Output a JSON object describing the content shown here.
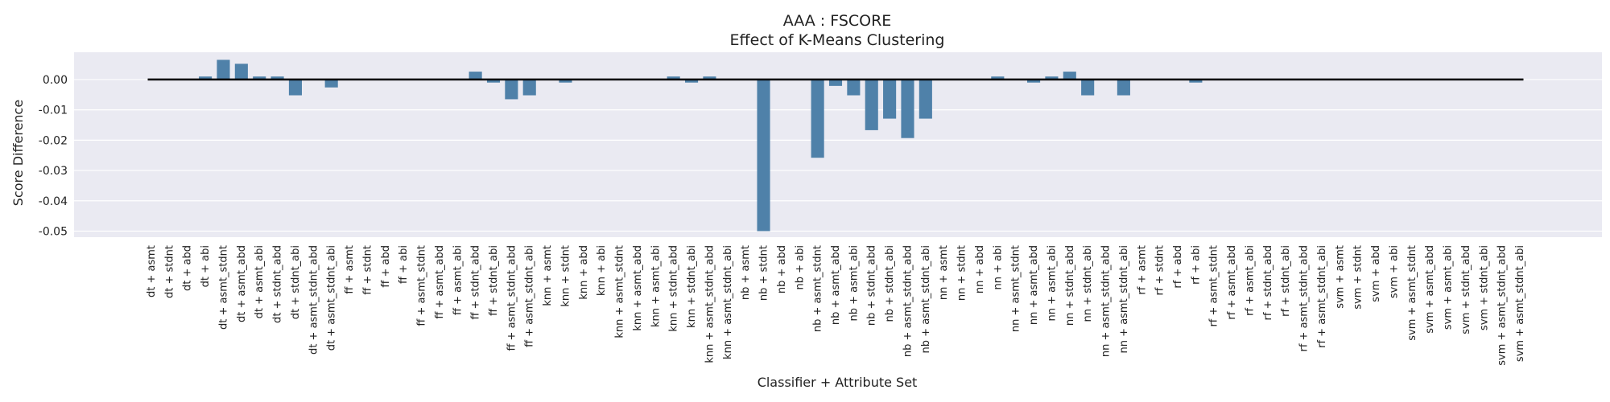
{
  "chart_data": {
    "type": "bar",
    "title": "AAA : FSCORE",
    "subtitle": "Effect of K-Means Clustering",
    "xlabel": "Classifier + Attribute Set",
    "ylabel": "Score Difference",
    "ylim": [
      -0.052,
      0.009
    ],
    "yticks": [
      0.0,
      -0.01,
      -0.02,
      -0.03,
      -0.04,
      -0.05
    ],
    "ytick_labels": [
      "0.00",
      "-0.01",
      "-0.02",
      "-0.03",
      "-0.04",
      "-0.05"
    ],
    "grid": true,
    "zero_line": true,
    "bar_color": "#4f81a9",
    "background_color": "#eaeaf2",
    "categories": [
      "dt + asmt",
      "dt + stdnt",
      "dt + abd",
      "dt + abi",
      "dt + asmt_stdnt",
      "dt + asmt_abd",
      "dt + asmt_abi",
      "dt + stdnt_abd",
      "dt + stdnt_abi",
      "dt + asmt_stdnt_abd",
      "dt + asmt_stdnt_abi",
      "ff + asmt",
      "ff + stdnt",
      "ff + abd",
      "ff + abi",
      "ff + asmt_stdnt",
      "ff + asmt_abd",
      "ff + asmt_abi",
      "ff + stdnt_abd",
      "ff + stdnt_abi",
      "ff + asmt_stdnt_abd",
      "ff + asmt_stdnt_abi",
      "knn + asmt",
      "knn + stdnt",
      "knn + abd",
      "knn + abi",
      "knn + asmt_stdnt",
      "knn + asmt_abd",
      "knn + asmt_abi",
      "knn + stdnt_abd",
      "knn + stdnt_abi",
      "knn + asmt_stdnt_abd",
      "knn + asmt_stdnt_abi",
      "nb + asmt",
      "nb + stdnt",
      "nb + abd",
      "nb + abi",
      "nb + asmt_stdnt",
      "nb + asmt_abd",
      "nb + asmt_abi",
      "nb + stdnt_abd",
      "nb + stdnt_abi",
      "nb + asmt_stdnt_abd",
      "nb + asmt_stdnt_abi",
      "nn + asmt",
      "nn + stdnt",
      "nn + abd",
      "nn + abi",
      "nn + asmt_stdnt",
      "nn + asmt_abd",
      "nn + asmt_abi",
      "nn + stdnt_abd",
      "nn + stdnt_abi",
      "nn + asmt_stdnt_abd",
      "nn + asmt_stdnt_abi",
      "rf + asmt",
      "rf + stdnt",
      "rf + abd",
      "rf + abi",
      "rf + asmt_stdnt",
      "rf + asmt_abd",
      "rf + asmt_abi",
      "rf + stdnt_abd",
      "rf + stdnt_abi",
      "rf + asmt_stdnt_abd",
      "rf + asmt_stdnt_abi",
      "svm + asmt",
      "svm + stdnt",
      "svm + abd",
      "svm + abi",
      "svm + asmt_stdnt",
      "svm + asmt_abd",
      "svm + asmt_abi",
      "svm + stdnt_abd",
      "svm + stdnt_abi",
      "svm + asmt_stdnt_abd",
      "svm + asmt_stdnt_abi"
    ],
    "values": [
      0,
      0,
      0,
      0.001,
      0.0065,
      0.0052,
      0.001,
      0.001,
      -0.0052,
      0,
      -0.0026,
      0,
      0,
      0,
      0,
      0,
      0,
      0,
      0.0026,
      -0.001,
      -0.0065,
      -0.0052,
      0,
      -0.001,
      0,
      0,
      0,
      0,
      0,
      0.001,
      -0.001,
      0.001,
      0,
      0,
      -0.05,
      0,
      0,
      -0.0258,
      -0.0021,
      -0.0052,
      -0.0167,
      -0.0129,
      -0.0193,
      -0.0129,
      0,
      0,
      0,
      0.001,
      0,
      -0.001,
      0.001,
      0.0026,
      -0.0052,
      0,
      -0.0052,
      0,
      0,
      0,
      -0.001,
      0,
      0,
      0,
      0,
      0,
      0,
      0,
      0,
      0,
      0,
      0,
      0,
      0,
      0,
      0,
      0,
      0,
      0
    ]
  }
}
